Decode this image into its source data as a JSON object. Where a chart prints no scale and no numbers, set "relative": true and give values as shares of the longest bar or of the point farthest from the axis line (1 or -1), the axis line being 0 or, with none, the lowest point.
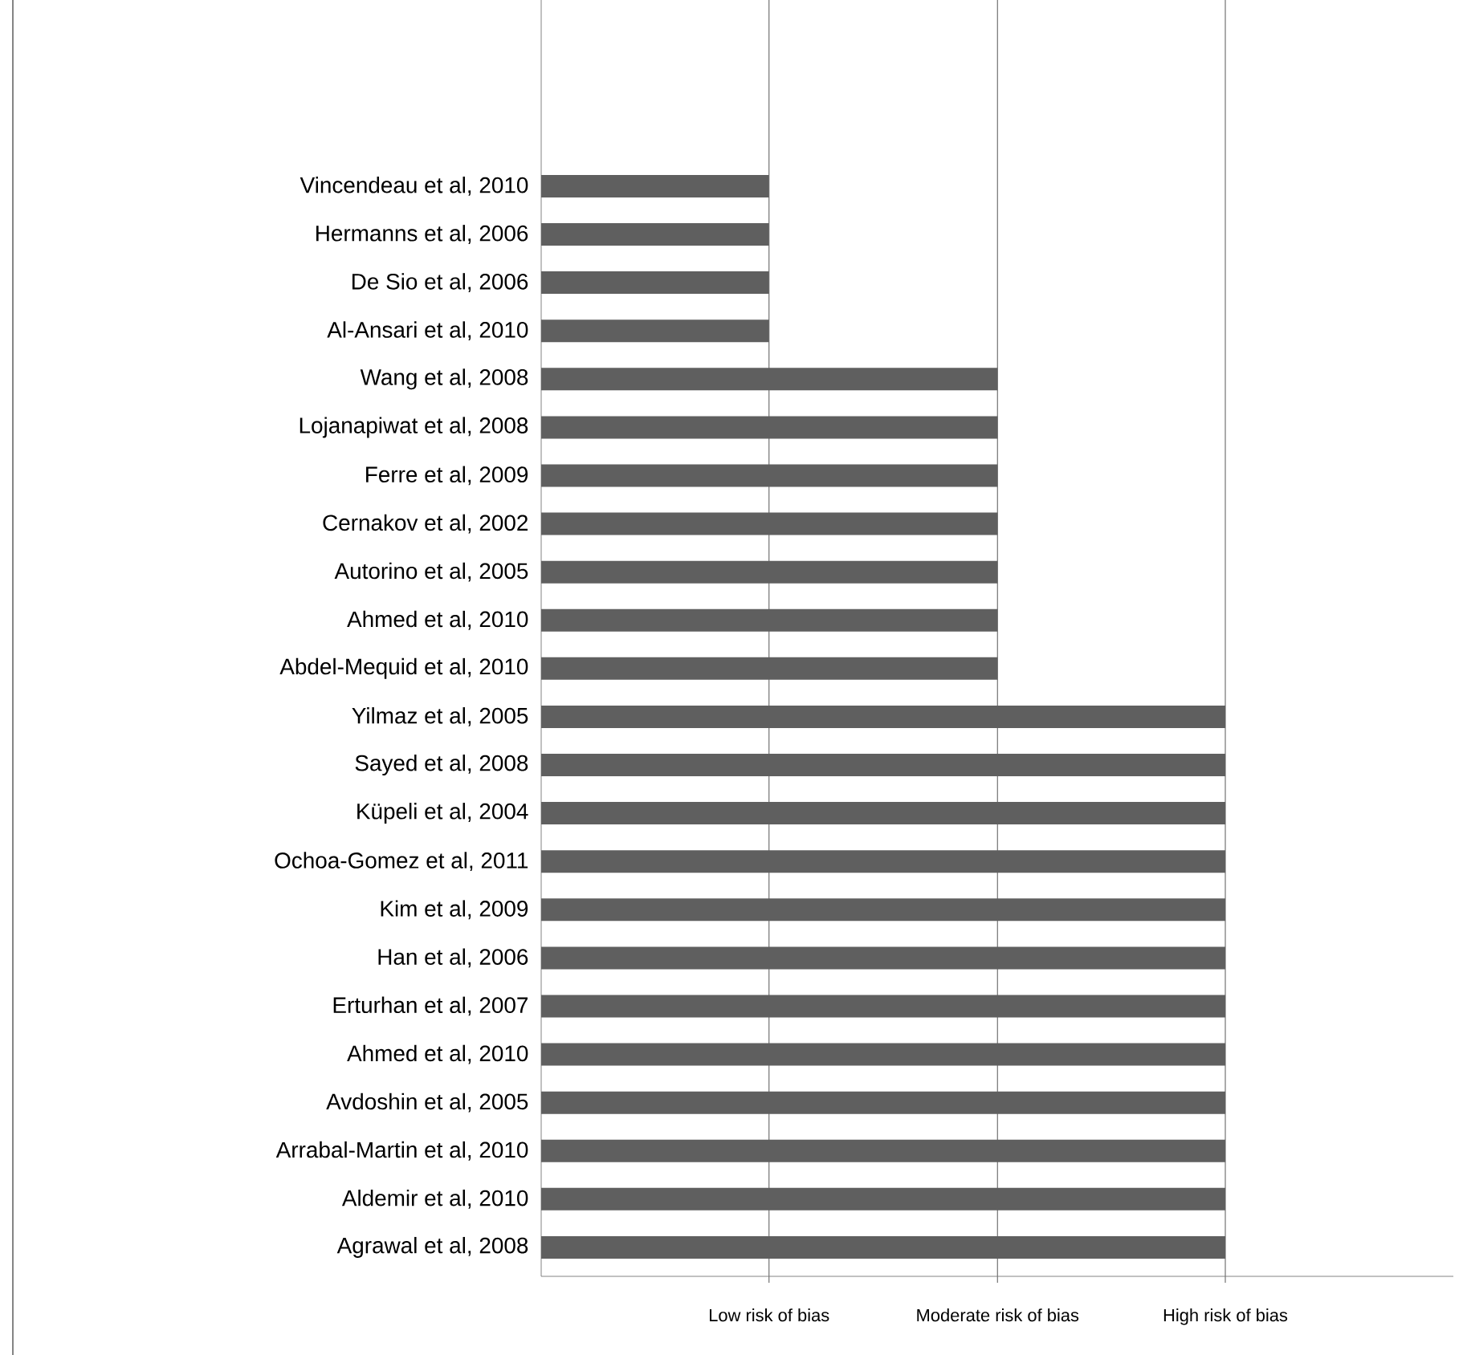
{
  "chart_data": {
    "type": "bar",
    "orientation": "horizontal",
    "relative": true,
    "color": "#5f5f5f",
    "categories": [
      "Vincendeau et al, 2010",
      "Hermanns et al, 2006",
      "De Sio et al, 2006",
      "Al-Ansari et al, 2010",
      "Wang et al, 2008",
      "Lojanapiwat et al, 2008",
      "Ferre et al, 2009",
      "Cernakov et al, 2002",
      "Autorino et al, 2005",
      "Ahmed et al, 2010",
      "Abdel-Mequid et al, 2010",
      "Yilmaz et al, 2005",
      "Sayed et al, 2008",
      "Küpeli et al, 2004",
      "Ochoa-Gomez et al, 2011",
      "Kim et al, 2009",
      "Han et al, 2006",
      "Erturhan et al, 2007",
      "Ahmed et al, 2010",
      "Avdoshin et al, 2005",
      "Arrabal-Martin et al, 2010",
      "Aldemir et al, 2010",
      "Agrawal et al, 2008"
    ],
    "values": [
      0.333,
      0.333,
      0.333,
      0.333,
      0.667,
      0.667,
      0.667,
      0.667,
      0.667,
      0.667,
      0.667,
      1,
      1,
      1,
      1,
      1,
      1,
      1,
      1,
      1,
      1,
      1,
      1
    ],
    "ref_lines": [
      {
        "axis": "x",
        "value": 0.333,
        "label": "Low risk of bias",
        "color": "#737373"
      },
      {
        "axis": "x",
        "value": 0.667,
        "label": "Moderate  risk of bias",
        "color": "#737373"
      },
      {
        "axis": "x",
        "value": 1,
        "label": "High  risk of bias",
        "color": "#737373"
      }
    ]
  }
}
